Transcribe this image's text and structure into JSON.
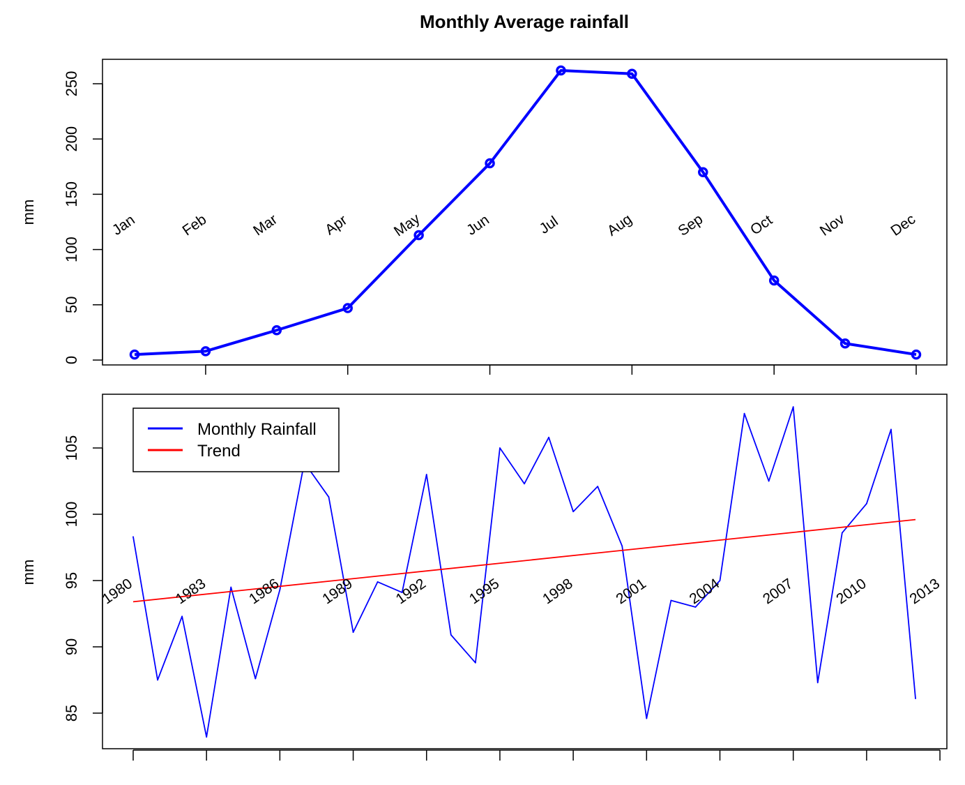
{
  "figure": {
    "title": "Monthly Average rainfall"
  },
  "chart_data": [
    {
      "type": "line",
      "title": "Monthly Average rainfall",
      "xlabel": "",
      "ylabel": "mm",
      "ylim": [
        0,
        275
      ],
      "yticks": [
        0,
        50,
        100,
        150,
        200,
        250
      ],
      "grid": false,
      "legend": "none",
      "categories": [
        "Jan",
        "Feb",
        "Mar",
        "Apr",
        "May",
        "Jun",
        "Jul",
        "Aug",
        "Sep",
        "Oct",
        "Nov",
        "Dec"
      ],
      "series": [
        {
          "values": [
            5,
            8,
            27,
            47,
            113,
            178,
            262,
            259,
            170,
            72,
            15,
            5
          ],
          "color": "#0000ff",
          "marker": "circle"
        }
      ]
    },
    {
      "type": "line",
      "title": "",
      "xlabel": "",
      "ylabel": "mm",
      "ylim": [
        82.3,
        109.3
      ],
      "yticks": [
        85,
        90,
        95,
        100,
        105
      ],
      "grid": false,
      "legend": "top-left",
      "x": [
        1980,
        1981,
        1982,
        1983,
        1984,
        1985,
        1986,
        1987,
        1988,
        1989,
        1990,
        1991,
        1992,
        1993,
        1994,
        1995,
        1996,
        1997,
        1998,
        1999,
        2000,
        2001,
        2002,
        2003,
        2004,
        2005,
        2006,
        2007,
        2008,
        2009,
        2010,
        2011,
        2012
      ],
      "year_labels": [
        "1980",
        "1983",
        "1986",
        "1989",
        "1992",
        "1995",
        "1998",
        "2001",
        "2004",
        "2007",
        "2010",
        "2013"
      ],
      "series": [
        {
          "name": "Monthly Rainfall",
          "color": "#0000ff",
          "values": [
            98.3,
            87.5,
            92.3,
            83.2,
            94.5,
            87.6,
            94.3,
            103.9,
            101.3,
            91.1,
            94.9,
            94.1,
            103.0,
            90.9,
            88.8,
            105.0,
            102.3,
            105.8,
            100.2,
            102.1,
            97.6,
            84.6,
            93.5,
            93.0,
            95.0,
            107.6,
            102.5,
            108.1,
            87.3,
            98.6,
            100.8,
            106.4,
            86.1
          ]
        },
        {
          "name": "Trend",
          "color": "#ff0000",
          "values": [
            93.4,
            99.6
          ],
          "x": [
            1980,
            2012
          ]
        }
      ]
    }
  ]
}
